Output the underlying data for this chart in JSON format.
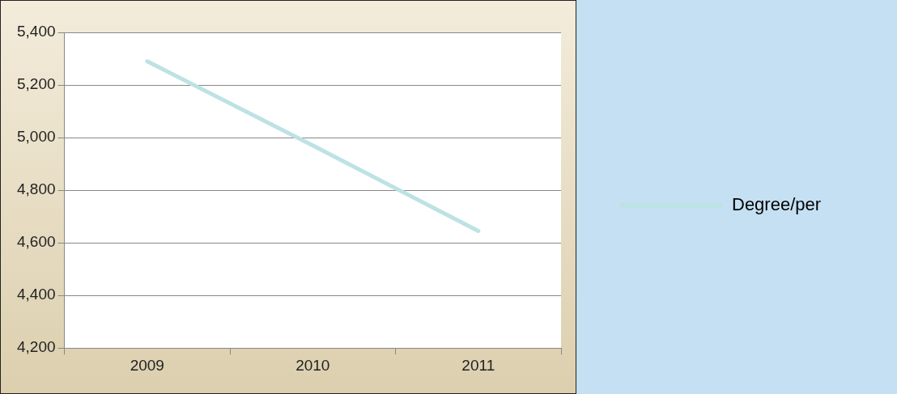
{
  "chart_data": {
    "type": "line",
    "categories": [
      "2009",
      "2010",
      "2011"
    ],
    "series": [
      {
        "name": "Degree/per",
        "color": "#bde2e4",
        "values": [
          5290,
          4970,
          4645
        ]
      }
    ],
    "ylim": [
      4200,
      5400
    ],
    "yticks": [
      {
        "value": 4200,
        "label": "4,200"
      },
      {
        "value": 4400,
        "label": "4,400"
      },
      {
        "value": 4600,
        "label": "4,600"
      },
      {
        "value": 4800,
        "label": "4,800"
      },
      {
        "value": 5000,
        "label": "5,000"
      },
      {
        "value": 5200,
        "label": "5,200"
      },
      {
        "value": 5400,
        "label": "5,400"
      }
    ],
    "grid": "y",
    "legend": "right",
    "marker": "none",
    "line_style": "solid"
  }
}
